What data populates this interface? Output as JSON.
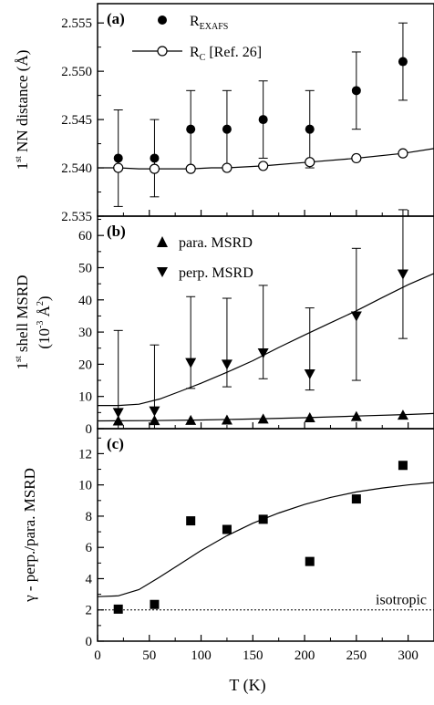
{
  "chart_data": [
    {
      "type": "scatter",
      "panel_label": "(a)",
      "ylabel_parts": [
        "1",
        "st",
        " NN distance  (Å)"
      ],
      "ylim": [
        2.535,
        2.557
      ],
      "yticks": [
        2.535,
        2.54,
        2.545,
        2.55,
        2.555
      ],
      "ytick_labels": [
        "2.535",
        "2.540",
        "2.545",
        "2.550",
        "2.555"
      ],
      "series": [
        {
          "name_parts": [
            "R",
            "EXAFS",
            ""
          ],
          "marker": "filled-circle",
          "x": [
            20,
            55,
            90,
            125,
            160,
            205,
            250,
            295
          ],
          "y": [
            2.541,
            2.541,
            2.544,
            2.544,
            2.545,
            2.544,
            2.548,
            2.551
          ],
          "yerr": [
            0.005,
            0.004,
            0.004,
            0.004,
            0.004,
            0.004,
            0.004,
            0.004
          ]
        },
        {
          "name_parts": [
            "R",
            "C",
            " [Ref. 26]"
          ],
          "marker": "open-circle-line",
          "x": [
            20,
            55,
            90,
            125,
            160,
            205,
            250,
            295
          ],
          "y": [
            2.54,
            2.5399,
            2.5399,
            2.54,
            2.5402,
            2.5406,
            2.541,
            2.5415
          ]
        }
      ],
      "curve": {
        "x": [
          0,
          20,
          40,
          55,
          70,
          90,
          110,
          125,
          160,
          205,
          250,
          295,
          325
        ],
        "y": [
          2.54,
          2.54,
          2.5399,
          2.5399,
          2.5399,
          2.5399,
          2.54,
          2.54,
          2.5402,
          2.5406,
          2.541,
          2.5415,
          2.542
        ]
      }
    },
    {
      "type": "scatter",
      "panel_label": "(b)",
      "ylabel_line1_parts": [
        "1",
        "st",
        " shell MSRD"
      ],
      "ylabel_line2_parts": [
        "(10",
        "-3",
        " Å",
        "2",
        ")"
      ],
      "ylim": [
        0,
        66
      ],
      "yticks": [
        0,
        10,
        20,
        30,
        40,
        50,
        60
      ],
      "ytick_labels": [
        "0",
        "10",
        "20",
        "30",
        "40",
        "50",
        "60"
      ],
      "series": [
        {
          "name": "para. MSRD",
          "marker": "triangle-up",
          "x": [
            20,
            55,
            90,
            125,
            160,
            205,
            250,
            295
          ],
          "y": [
            2.4,
            2.5,
            2.6,
            2.7,
            3.0,
            3.4,
            3.8,
            4.2
          ]
        },
        {
          "name": "perp. MSRD",
          "marker": "triangle-down",
          "x": [
            20,
            55,
            90,
            125,
            160,
            205,
            250,
            295
          ],
          "y": [
            5,
            5.5,
            20.5,
            20,
            23.5,
            17,
            35,
            48
          ],
          "yerr_lower": [
            5,
            5.5,
            8,
            7,
            8,
            5,
            20,
            20
          ],
          "yerr_upper": [
            25.5,
            20.5,
            20.5,
            20.5,
            21,
            20.5,
            21,
            20
          ]
        }
      ],
      "curves": [
        {
          "x": [
            0,
            20,
            40,
            60,
            80,
            100,
            125,
            150,
            175,
            200,
            225,
            250,
            275,
            300,
            325
          ],
          "y": [
            7.2,
            7.2,
            7.6,
            9.2,
            11.6,
            14.1,
            17.5,
            21.1,
            25.2,
            29.1,
            32.9,
            36.6,
            40.7,
            44.7,
            48.2
          ]
        },
        {
          "x": [
            0,
            50,
            100,
            150,
            200,
            250,
            300,
            325
          ],
          "y": [
            2.4,
            2.5,
            2.7,
            3.0,
            3.4,
            3.9,
            4.4,
            4.7
          ]
        }
      ]
    },
    {
      "type": "scatter",
      "panel_label": "(c)",
      "ylabel": "γ - perp./para. MSRD",
      "xlabel": "T  (K)",
      "xlim": [
        0,
        325
      ],
      "xticks": [
        0,
        50,
        100,
        150,
        200,
        250,
        300
      ],
      "xtick_labels": [
        "0",
        "50",
        "100",
        "150",
        "200",
        "250",
        "300"
      ],
      "ylim": [
        0,
        13.6
      ],
      "yticks": [
        0,
        2,
        4,
        6,
        8,
        10,
        12
      ],
      "ytick_labels": [
        "0",
        "2",
        "4",
        "6",
        "8",
        "10",
        "12"
      ],
      "series": [
        {
          "marker": "filled-square",
          "x": [
            20,
            55,
            90,
            125,
            160,
            205,
            250,
            295
          ],
          "y": [
            2.05,
            2.35,
            7.7,
            7.15,
            7.8,
            5.1,
            9.1,
            11.25
          ]
        }
      ],
      "curve": {
        "x": [
          0,
          20,
          40,
          60,
          80,
          100,
          125,
          150,
          175,
          200,
          225,
          250,
          275,
          300,
          325
        ],
        "y": [
          2.85,
          2.9,
          3.3,
          4.1,
          4.95,
          5.8,
          6.75,
          7.55,
          8.2,
          8.75,
          9.2,
          9.55,
          9.8,
          10.0,
          10.15
        ]
      },
      "reference_line": {
        "y": 2.0,
        "label": "isotropic"
      }
    }
  ]
}
